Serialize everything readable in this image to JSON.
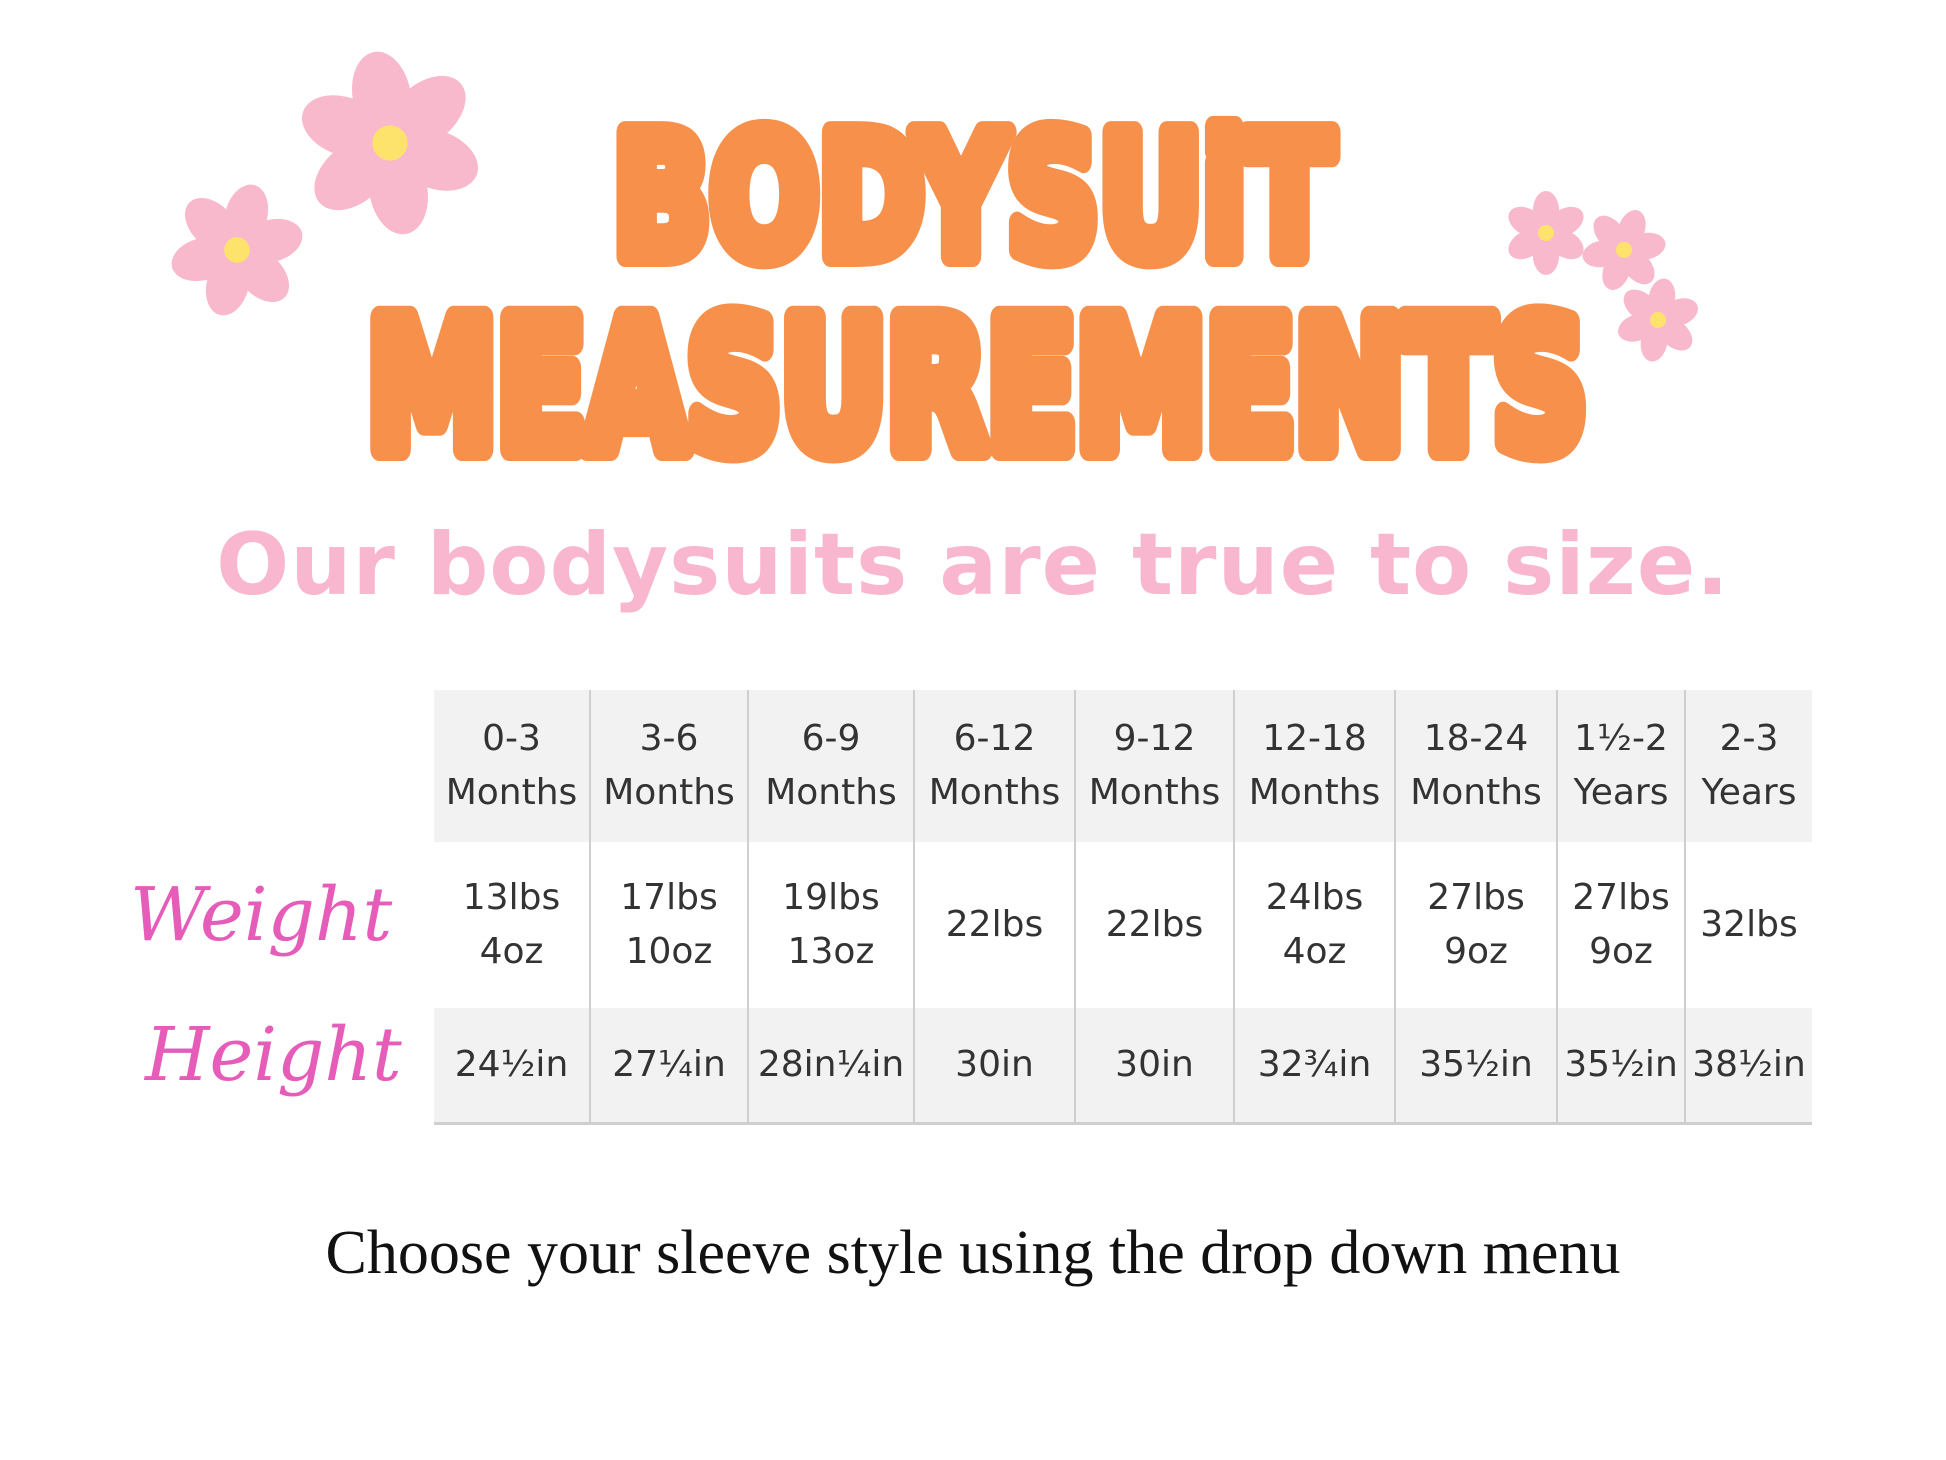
{
  "colors": {
    "title": "#F7904B",
    "subtitle": "#F8B7CF",
    "script_label": "#E65DB9",
    "flower_petal": "#F9B9CD",
    "flower_center": "#FDE36B"
  },
  "title": {
    "line1": "BODYSUiT",
    "line2": "MEASUREMENTS"
  },
  "subtitle": "Our bodysuits are true to size.",
  "row_labels": {
    "weight": "Weight",
    "height": "Height"
  },
  "table": {
    "columns": [
      {
        "range": "0-3",
        "unit": "Months",
        "weight": [
          "13lbs",
          "4oz"
        ],
        "height": "24½in"
      },
      {
        "range": "3-6",
        "unit": "Months",
        "weight": [
          "17lbs",
          "10oz"
        ],
        "height": "27¼in"
      },
      {
        "range": "6-9",
        "unit": "Months",
        "weight": [
          "19lbs",
          "13oz"
        ],
        "height": "28in¼in"
      },
      {
        "range": "6-12",
        "unit": "Months",
        "weight": [
          "22lbs",
          ""
        ],
        "height": "30in"
      },
      {
        "range": "9-12",
        "unit": "Months",
        "weight": [
          "22lbs",
          ""
        ],
        "height": "30in"
      },
      {
        "range": "12-18",
        "unit": "Months",
        "weight": [
          "24lbs",
          "4oz"
        ],
        "height": "32¾in"
      },
      {
        "range": "18-24",
        "unit": "Months",
        "weight": [
          "27lbs",
          "9oz"
        ],
        "height": "35½in"
      },
      {
        "range": "1½-2",
        "unit": "Years",
        "weight": [
          "27lbs",
          "9oz"
        ],
        "height": "35½in"
      },
      {
        "range": "2-3",
        "unit": "Years",
        "weight": [
          "32lbs",
          ""
        ],
        "height": "38½in"
      }
    ]
  },
  "footer": "Choose your sleeve style using the drop down menu",
  "decorations": {
    "icon": "daisy-flower-icon"
  }
}
